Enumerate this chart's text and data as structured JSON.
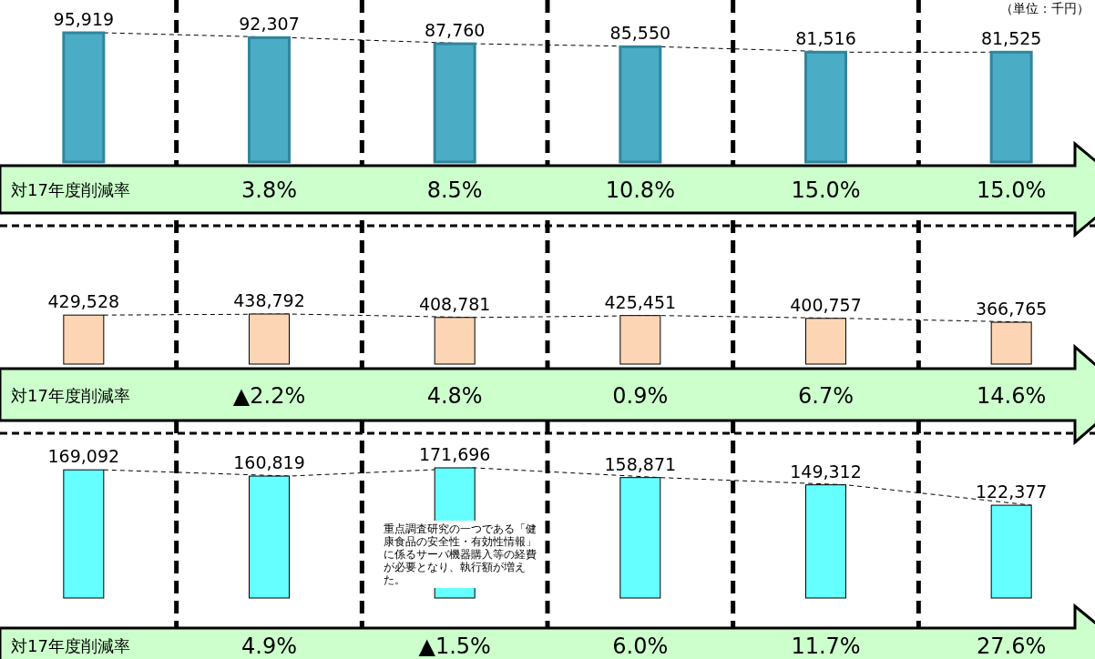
{
  "chart_data": [
    {
      "type": "bar",
      "subtitle": "（単位：千円）",
      "categories": [
        null,
        null,
        null,
        null,
        null,
        null
      ],
      "line_style": "dashed",
      "color": "#4bacc6",
      "values": [
        95919,
        92307,
        87760,
        85550,
        81516,
        81525
      ],
      "value_labels": [
        "95,919",
        "92,307",
        "87,760",
        "85,550",
        "81,516",
        "81,525"
      ],
      "annotations": [
        "対17年度削減率",
        "3.8%",
        "8.5%",
        "10.8%",
        "15.0%",
        "15.0%"
      ]
    },
    {
      "type": "bar",
      "categories": [
        null,
        null,
        null,
        null,
        null,
        null
      ],
      "line_style": "dashed",
      "color": "#fcd5b5",
      "values": [
        429528,
        438792,
        408781,
        425451,
        400757,
        366765
      ],
      "value_labels": [
        "429,528",
        "438,792",
        "408,781",
        "425,451",
        "400,757",
        "366,765"
      ],
      "annotations": [
        "対17年度削減率",
        "▲2.2%",
        "4.8%",
        "0.9%",
        "6.7%",
        "14.6%"
      ]
    },
    {
      "type": "bar",
      "categories": [
        null,
        null,
        null,
        null,
        null,
        null
      ],
      "line_style": "dashed",
      "color": "#66ffff",
      "values": [
        169092,
        160819,
        171696,
        158871,
        149312,
        122377
      ],
      "value_labels": [
        "169,092",
        "160,819",
        "171,696",
        "158,871",
        "149,312",
        "122,377"
      ],
      "annotations": [
        "対17年度削減率",
        "4.9%",
        "▲1.5%",
        "6.0%",
        "11.7%",
        "27.6%",
        "重点調査研究の一つである「健康食品の安全性・有効性情報」に係るサーバ機器購入等の経費が必要となり、執行額が増えた。"
      ]
    }
  ]
}
